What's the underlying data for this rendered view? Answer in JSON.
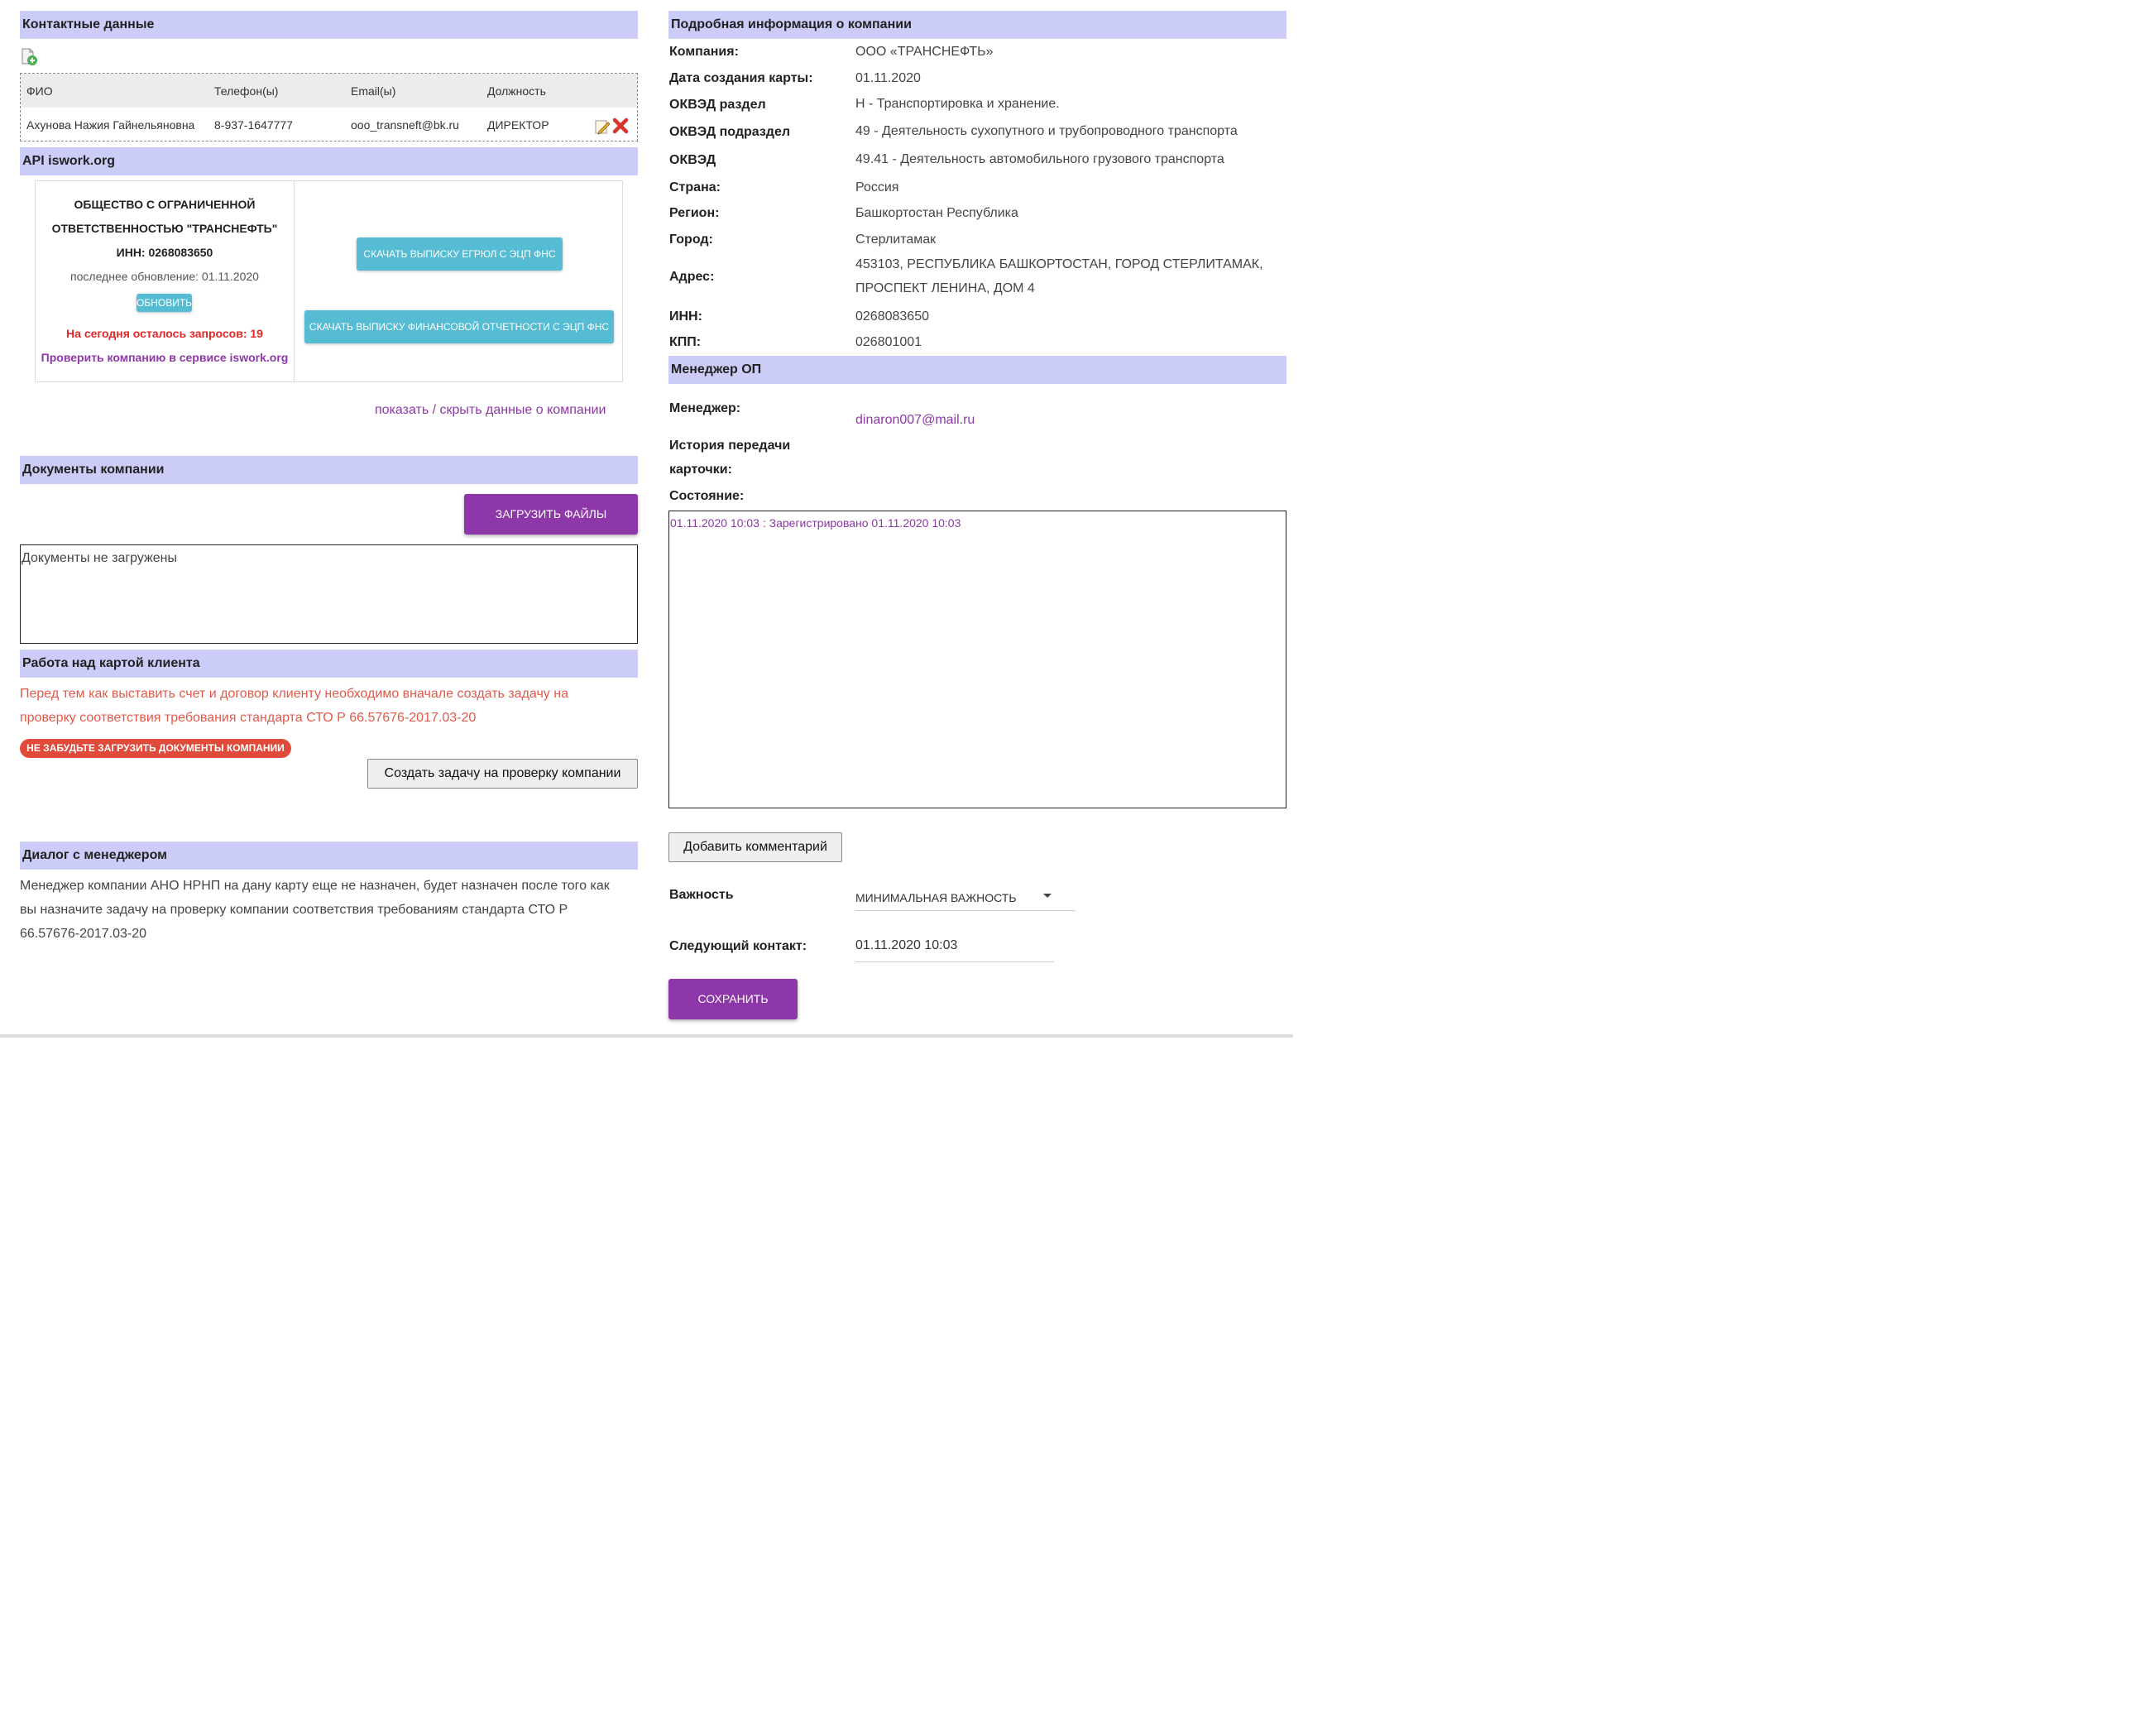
{
  "contacts": {
    "header": "Контактные данные",
    "columns": [
      "ФИО",
      "Телефон(ы)",
      "Email(ы)",
      "Должность"
    ],
    "rows": [
      {
        "fio": "Ахунова Нажия Гайнельяновна",
        "phone": "8-937-1647777",
        "email": "ooo_transneft@bk.ru",
        "position": "ДИРЕКТОР"
      }
    ]
  },
  "api": {
    "header": "API iswork.org",
    "company_line1": "ОБЩЕСТВО С ОГРАНИЧЕННОЙ",
    "company_line2": "ОТВЕТСТВЕННОСТЬЮ \"ТРАНСНЕФТЬ\"",
    "inn": "ИНН: 0268083650",
    "last_update": "последнее обновление: 01.11.2020",
    "refresh_button": "ОБНОВИТЬ",
    "requests_left": "На сегодня осталось запросов: 19",
    "check_link": "Проверить компанию в сервисе iswork.org",
    "egrul_button": "СКАЧАТЬ ВЫПИСКУ ЕГРЮЛ С ЭЦП ФНС",
    "finance_button": "СКАЧАТЬ ВЫПИСКУ ФИНАНСОВОЙ ОТЧЕТНОСТИ С ЭЦП ФНС",
    "toggle_link": "показать / скрыть данные о компании"
  },
  "documents": {
    "header": "Документы компании",
    "upload_button": "ЗАГРУЗИТЬ ФАЙЛЫ",
    "empty_text": "Документы не загружены"
  },
  "work": {
    "header": "Работа над картой клиента",
    "warning_line1": "Перед тем как выставить счет и договор клиенту необходимо вначале создать задачу на",
    "warning_line2": "проверку соответствия требования стандарта СТО Р 66.57676-2017.03-20",
    "badge": "НЕ ЗАБУДЬТЕ ЗАГРУЗИТЬ ДОКУМЕНТЫ КОМПАНИИ",
    "create_task_button": "Создать задачу на проверку компании"
  },
  "dialog": {
    "header": "Диалог с менеджером",
    "line1": "Менеджер компании АНО НРНП на дану карту еще не назначен, будет назначен после того как",
    "line2": "вы назначите задачу на проверку компании соответствия требованиям стандарта СТО Р",
    "line3": "66.57676-2017.03-20"
  },
  "company": {
    "header": "Подробная информация о компании",
    "company_label": "Компания:",
    "company_value": "ООО «ТРАНСНЕФТЬ»",
    "created_label": "Дата создания карты:",
    "created_value": "01.11.2020",
    "okved_section_label": "ОКВЭД раздел",
    "okved_section_value": "H - Транспортировка и хранение.",
    "okved_subsection_label": "ОКВЭД подраздел",
    "okved_subsection_value": "49 - Деятельность сухопутного и трубопроводного транспорта",
    "okved_label": "ОКВЭД",
    "okved_value": "49.41 - Деятельность автомобильного грузового транспорта",
    "country_label": "Страна:",
    "country_value": "Россия",
    "region_label": "Регион:",
    "region_value": "Башкортостан Республика",
    "city_label": "Город:",
    "city_value": "Стерлитамак",
    "address_label": "Адрес:",
    "address_line1": "453103, РЕСПУБЛИКА БАШКОРТОСТАН, ГОРОД СТЕРЛИТАМАК,",
    "address_line2": "ПРОСПЕКТ ЛЕНИНА, ДОМ 4",
    "inn_label": "ИНН:",
    "inn_value": "0268083650",
    "kpp_label": "КПП:",
    "kpp_value": "026801001"
  },
  "manager": {
    "header": "Менеджер ОП",
    "manager_label": "Менеджер:",
    "manager_email": "dinaron007@mail.ru",
    "history_label_line1": "История передачи",
    "history_label_line2": "карточки:",
    "state_label": "Состояние:",
    "log_time": "01.11.2020 10:03",
    "log_sep": " : ",
    "log_text": "Зарегистрировано 01.11.2020 10:03",
    "add_comment_button": "Добавить комментарий",
    "importance_label": "Важность",
    "importance_value": "МИНИМАЛЬНАЯ ВАЖНОСТЬ",
    "next_contact_label": "Следующий контакт:",
    "next_contact_value": "01.11.2020 10:03",
    "save_button": "СОХРАНИТЬ"
  }
}
